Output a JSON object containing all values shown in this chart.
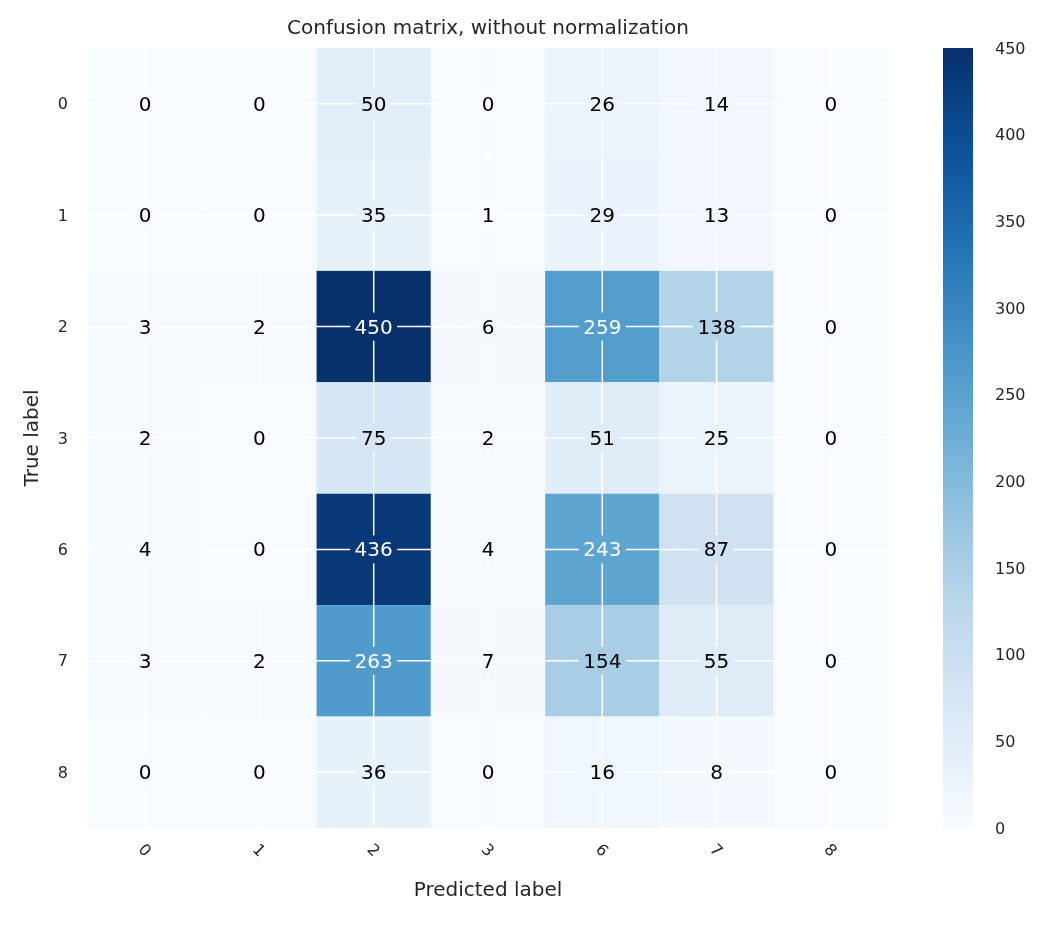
{
  "chart_data": {
    "type": "heatmap",
    "title": "Confusion matrix, without normalization",
    "xlabel": "Predicted label",
    "ylabel": "True label",
    "categories": [
      "0",
      "1",
      "2",
      "3",
      "6",
      "7",
      "8"
    ],
    "y_categories": [
      "0",
      "1",
      "2",
      "3",
      "6",
      "7",
      "8"
    ],
    "cells": [
      [
        0,
        0,
        50,
        0,
        26,
        14,
        0
      ],
      [
        0,
        0,
        35,
        1,
        29,
        13,
        0
      ],
      [
        3,
        2,
        450,
        6,
        259,
        138,
        0
      ],
      [
        2,
        0,
        75,
        2,
        51,
        25,
        0
      ],
      [
        4,
        0,
        436,
        4,
        243,
        87,
        0
      ],
      [
        3,
        2,
        263,
        7,
        154,
        55,
        0
      ],
      [
        0,
        0,
        36,
        0,
        16,
        8,
        0
      ]
    ],
    "clim": [
      0,
      450
    ],
    "cticks": [
      0,
      50,
      100,
      150,
      200,
      250,
      300,
      350,
      400,
      450
    ],
    "grid": true,
    "data_labels": true
  }
}
